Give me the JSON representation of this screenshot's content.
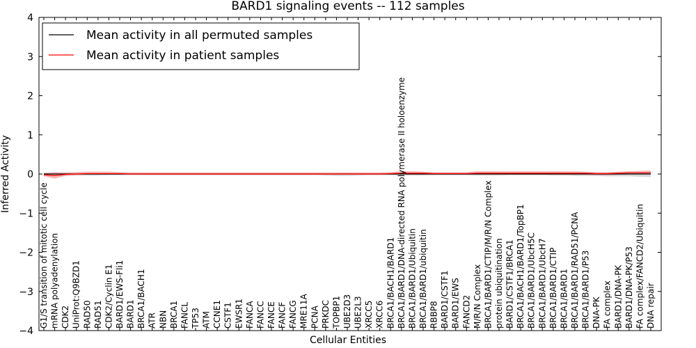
{
  "chart_data": {
    "type": "line",
    "title": "BARD1 signaling events -- 112 samples",
    "xlabel": "Cellular Entities",
    "ylabel": "Inferred Activity",
    "ylim": [
      -4,
      4
    ],
    "yticks": [
      -4,
      -3,
      -2,
      -1,
      0,
      1,
      2,
      3,
      4
    ],
    "ytick_labels": [
      "−4",
      "−3",
      "−2",
      "−1",
      "0",
      "1",
      "2",
      "3",
      "4"
    ],
    "grid": false,
    "legend_position": "top-left",
    "categories": [
      "G1/S transition of mitotic cell cycle",
      "mRNA polyadenylation",
      "CDK2",
      "UniProt:Q9BZD1",
      "RAD50",
      "RAD51",
      "CDK2/Cyclin E1",
      "BARD1/EWS-Fli1",
      "BARD1",
      "BRCA1/BACH1",
      "ATR",
      "NBN",
      "BRCA1",
      "FANCL",
      "TP53",
      "ATM",
      "CCNE1",
      "CSTF1",
      "EWSR1",
      "FANCA",
      "FANCC",
      "FANCE",
      "FANCF",
      "FANCG",
      "MRE11A",
      "PCNA",
      "PRKDC",
      "TOPBP1",
      "UBE2D3",
      "UBE2L3",
      "XRCC5",
      "XRCC6",
      "BRCA1/BACH1/BARD1",
      "BRCA1/BARD1/DNA-directed RNA polymerase II holoenzyme",
      "BRCA1/BARD1/Ubiquitin",
      "BRCA1/BARD1/ubiquitin",
      "RBBP8",
      "BARD1/CSTF1",
      "BARD1/EWS",
      "FANCD2",
      "M/R/N Complex",
      "BRCA1/BARD1/CTIP/M/R/N Complex",
      "protein ubiquitination",
      "BARD1/CSTF1/BRCA1",
      "BRCA1/BACH1/BARD1/TopBP1",
      "BRCA1/BARD1/UbcH5C",
      "BRCA1/BARD1/UbcH7",
      "BRCA1/BARD1/CTIP",
      "BRCA1/BARD1",
      "BRCA1/BARD1/RAD51/PCNA",
      "BRCA1/BARD1/P53",
      "DNA-PK",
      "FA complex",
      "BARD1/DNA-PK",
      "BARD1/DNA-PK/P53",
      "FA complex/FANCD2/Ubiquitin",
      "DNA repair"
    ],
    "series": [
      {
        "name": "Mean activity in all permuted samples",
        "color": "#000000",
        "band_color": "#c8c8c8",
        "values": [
          0,
          0,
          0,
          0,
          0,
          0,
          0,
          0,
          0,
          0,
          0,
          0,
          0,
          0,
          0,
          0,
          0,
          0,
          0,
          0,
          0,
          0,
          0,
          0,
          0,
          0,
          0,
          0,
          0,
          0,
          0,
          0,
          0,
          0,
          0,
          0,
          0,
          0,
          0,
          0,
          0,
          0,
          0,
          0,
          0,
          0,
          0,
          0,
          0,
          0,
          0,
          0,
          0,
          0,
          0,
          0,
          0
        ],
        "band_low": [
          -0.05,
          -0.05,
          -0.05,
          -0.04,
          -0.04,
          -0.04,
          -0.03,
          -0.03,
          -0.03,
          -0.03,
          -0.03,
          -0.03,
          -0.03,
          -0.03,
          -0.03,
          -0.03,
          -0.03,
          -0.03,
          -0.03,
          -0.03,
          -0.03,
          -0.03,
          -0.03,
          -0.03,
          -0.03,
          -0.03,
          -0.04,
          -0.05,
          -0.05,
          -0.04,
          -0.03,
          -0.03,
          -0.03,
          -0.04,
          -0.04,
          -0.04,
          -0.03,
          -0.03,
          -0.03,
          -0.03,
          -0.04,
          -0.04,
          -0.04,
          -0.03,
          -0.03,
          -0.03,
          -0.03,
          -0.04,
          -0.04,
          -0.05,
          -0.05,
          -0.05,
          -0.06,
          -0.06,
          -0.06,
          -0.07,
          -0.08
        ],
        "band_high": [
          0.04,
          0.04,
          0.04,
          0.03,
          0.03,
          0.03,
          0.03,
          0.03,
          0.03,
          0.03,
          0.03,
          0.03,
          0.03,
          0.03,
          0.03,
          0.03,
          0.03,
          0.03,
          0.03,
          0.03,
          0.03,
          0.03,
          0.03,
          0.03,
          0.03,
          0.03,
          0.03,
          0.03,
          0.03,
          0.03,
          0.03,
          0.03,
          0.03,
          0.03,
          0.03,
          0.03,
          0.03,
          0.03,
          0.03,
          0.03,
          0.03,
          0.03,
          0.03,
          0.03,
          0.03,
          0.03,
          0.03,
          0.03,
          0.03,
          0.03,
          0.03,
          0.03,
          0.04,
          0.04,
          0.04,
          0.05,
          0.06
        ]
      },
      {
        "name": "Mean activity in patient samples",
        "color": "#ff0000",
        "band_color": "#f4a0a0",
        "values": [
          -0.02,
          -0.04,
          -0.01,
          0.0,
          0.01,
          0.01,
          0.01,
          0.01,
          0.0,
          0.0,
          0.0,
          0.0,
          0.0,
          0.0,
          0.0,
          0.0,
          0.0,
          0.0,
          0.0,
          0.0,
          0.0,
          0.0,
          0.0,
          0.0,
          0.0,
          0.0,
          0.0,
          0.0,
          0.0,
          0.0,
          0.0,
          0.0,
          0.01,
          0.02,
          0.02,
          0.02,
          0.01,
          0.01,
          0.01,
          0.01,
          0.02,
          0.02,
          0.02,
          0.02,
          0.02,
          0.02,
          0.02,
          0.02,
          0.02,
          0.02,
          0.02,
          0.01,
          0.01,
          0.02,
          0.03,
          0.03,
          0.03
        ],
        "band_low": [
          -0.06,
          -0.12,
          -0.05,
          -0.03,
          -0.02,
          -0.02,
          -0.02,
          -0.02,
          -0.02,
          -0.02,
          -0.02,
          -0.02,
          -0.02,
          -0.02,
          -0.02,
          -0.02,
          -0.02,
          -0.02,
          -0.02,
          -0.02,
          -0.02,
          -0.02,
          -0.02,
          -0.02,
          -0.02,
          -0.02,
          -0.02,
          -0.02,
          -0.02,
          -0.02,
          -0.02,
          -0.02,
          -0.02,
          -0.02,
          -0.02,
          -0.02,
          -0.02,
          -0.02,
          -0.02,
          -0.02,
          -0.02,
          -0.02,
          -0.02,
          -0.02,
          -0.02,
          -0.02,
          -0.02,
          -0.02,
          -0.02,
          -0.02,
          -0.02,
          -0.03,
          -0.03,
          -0.02,
          -0.01,
          -0.01,
          -0.01
        ],
        "band_high": [
          0.02,
          0.04,
          0.04,
          0.05,
          0.06,
          0.06,
          0.06,
          0.05,
          0.04,
          0.04,
          0.04,
          0.04,
          0.04,
          0.04,
          0.04,
          0.04,
          0.04,
          0.04,
          0.04,
          0.04,
          0.04,
          0.04,
          0.04,
          0.04,
          0.04,
          0.04,
          0.04,
          0.04,
          0.04,
          0.04,
          0.04,
          0.04,
          0.05,
          0.07,
          0.07,
          0.06,
          0.05,
          0.05,
          0.05,
          0.05,
          0.07,
          0.07,
          0.07,
          0.07,
          0.07,
          0.07,
          0.07,
          0.07,
          0.07,
          0.07,
          0.06,
          0.05,
          0.05,
          0.06,
          0.07,
          0.08,
          0.09
        ]
      }
    ]
  }
}
